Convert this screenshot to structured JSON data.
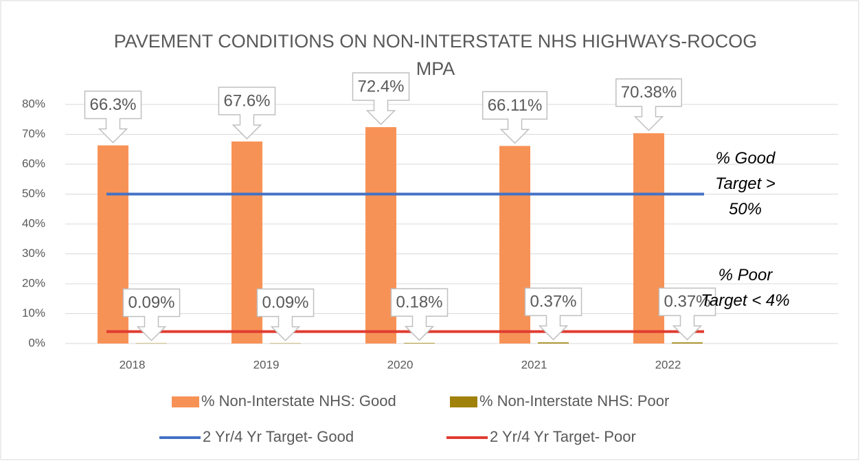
{
  "chart_data": {
    "type": "bar",
    "title": "PAVEMENT CONDITIONS ON NON-INTERSTATE NHS HIGHWAYS-ROCOG MPA",
    "categories": [
      "2018",
      "2019",
      "2020",
      "2021",
      "2022"
    ],
    "series": [
      {
        "name": "% Non-Interstate NHS: Good",
        "type": "bar",
        "color": "#f79256",
        "values": [
          66.3,
          67.6,
          72.4,
          66.11,
          70.38
        ],
        "value_labels": [
          "66.3%",
          "67.6%",
          "72.4%",
          "66.11%",
          "70.38%"
        ]
      },
      {
        "name": "% Non-Interstate NHS: Poor",
        "type": "bar",
        "color": "#a0820a",
        "values": [
          0.09,
          0.09,
          0.18,
          0.37,
          0.37
        ],
        "value_labels": [
          "0.09%",
          "0.09%",
          "0.18%",
          "0.37%",
          "0.37%"
        ]
      },
      {
        "name": "2 Yr/4 Yr Target- Good",
        "type": "line",
        "color": "#4472c4",
        "values": [
          50,
          50,
          50,
          50,
          50
        ]
      },
      {
        "name": "2 Yr/4 Yr Target- Poor",
        "type": "line",
        "color": "#e03c31",
        "values": [
          4,
          4,
          4,
          4,
          4
        ]
      }
    ],
    "ylim": [
      0,
      80
    ],
    "yticks": [
      {
        "value": 0,
        "label": "0%"
      },
      {
        "value": 10,
        "label": "10%"
      },
      {
        "value": 20,
        "label": "20%"
      },
      {
        "value": 30,
        "label": "30%"
      },
      {
        "value": 40,
        "label": "40%"
      },
      {
        "value": 50,
        "label": "50%"
      },
      {
        "value": 60,
        "label": "60%"
      },
      {
        "value": 70,
        "label": "70%"
      },
      {
        "value": 80,
        "label": "80%"
      }
    ],
    "grid": true,
    "legend": "bottom",
    "annotations": [
      "% Good Target > 50%",
      "% Poor Target < 4%"
    ]
  }
}
